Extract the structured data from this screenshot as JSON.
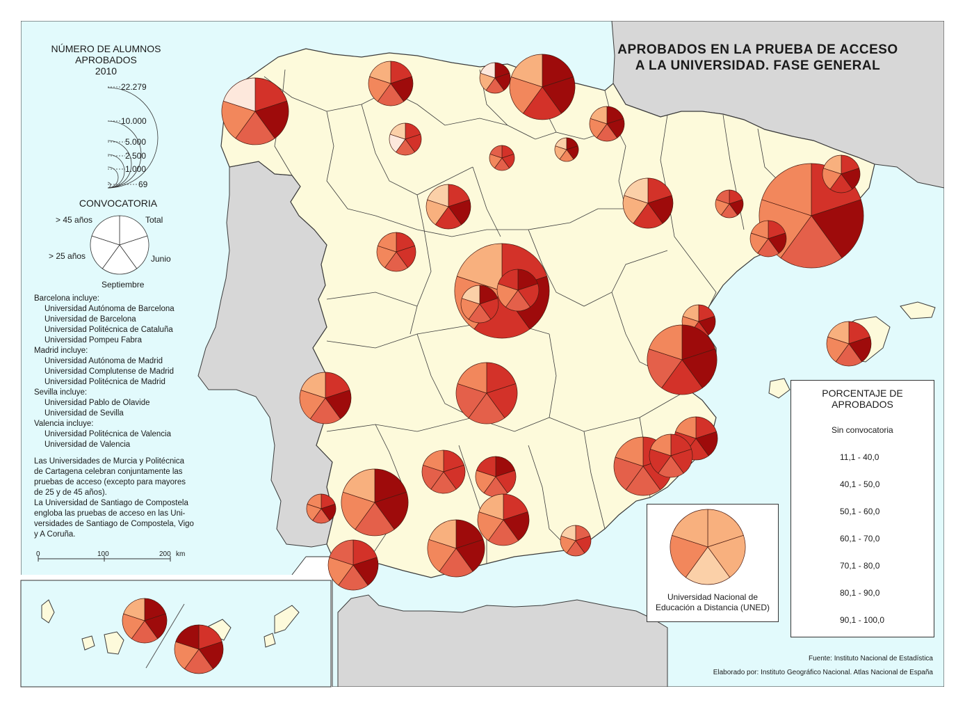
{
  "title": "APROBADOS EN LA PRUEBA DE ACCESO A LA UNIVERSIDAD. FASE GENERAL",
  "title_lines": [
    "APROBADOS EN LA PRUEBA DE ACCESO",
    "A LA UNIVERSIDAD. FASE GENERAL"
  ],
  "size_legend": {
    "title_lines": [
      "NÚMERO DE ALUMNOS",
      "APROBADOS",
      "2010"
    ],
    "values": [
      "22.279",
      "10.000",
      "5.000",
      "2.500",
      "1.000",
      "69"
    ]
  },
  "convocatoria": {
    "title": "CONVOCATORIA",
    "labels": {
      "mayores45": "> 45 años",
      "total": "Total",
      "mayores25": "> 25 años",
      "junio": "Junio",
      "septiembre": "Septiembre"
    }
  },
  "notes": [
    {
      "text": "Barcelona incluye:",
      "indent": false
    },
    {
      "text": "Universidad Autónoma de Barcelona",
      "indent": true
    },
    {
      "text": "Universidad de Barcelona",
      "indent": true
    },
    {
      "text": "Universidad Politécnica de Cataluña",
      "indent": true
    },
    {
      "text": "Universidad Pompeu Fabra",
      "indent": true
    },
    {
      "text": "Madrid incluye:",
      "indent": false
    },
    {
      "text": "Universidad Autónoma de Madrid",
      "indent": true
    },
    {
      "text": "Universidad Complutense de Madrid",
      "indent": true
    },
    {
      "text": "Universidad Politécnica de Madrid",
      "indent": true
    },
    {
      "text": "Sevilla incluye:",
      "indent": false
    },
    {
      "text": "Universidad Pablo de Olavide",
      "indent": true
    },
    {
      "text": "Universidad de Sevilla",
      "indent": true
    },
    {
      "text": "Valencia incluye:",
      "indent": false
    },
    {
      "text": "Universidad Politécnica de Valencia",
      "indent": true
    },
    {
      "text": "Universidad de Valencia",
      "indent": true
    },
    {
      "gap": true
    },
    {
      "text": "Las Universidades de Murcia y Politécnica",
      "indent": false
    },
    {
      "text": "de Cartagena celebran conjuntamente las",
      "indent": false
    },
    {
      "text": "pruebas de acceso (excepto para mayores",
      "indent": false
    },
    {
      "text": "de 25 y de 45 años).",
      "indent": false
    },
    {
      "text": "La Universidad de Santiago de Compostela",
      "indent": false
    },
    {
      "text": "engloba las pruebas de acceso en las Uni-",
      "indent": false
    },
    {
      "text": "versidades de Santiago de Compostela, Vigo",
      "indent": false
    },
    {
      "text": "y A Coruña.",
      "indent": false
    }
  ],
  "scale_bar": {
    "labels": [
      "0",
      "100",
      "200"
    ],
    "unit": "km"
  },
  "percent_legend": {
    "title_lines": [
      "PORCENTAJE DE",
      "APROBADOS"
    ],
    "classes": [
      {
        "label": "Sin convocatoria",
        "color": "#ffffff"
      },
      {
        "label": "11,1 - 40,0",
        "color": "#fde8dc"
      },
      {
        "label": "40,1 - 50,0",
        "color": "#fbd0a8"
      },
      {
        "label": "50,1 - 60,0",
        "color": "#f8b07e"
      },
      {
        "label": "60,1 - 70,0",
        "color": "#f2875c"
      },
      {
        "label": "70,1 - 80,0",
        "color": "#e4604a"
      },
      {
        "label": "80,1 - 90,0",
        "color": "#d33229"
      },
      {
        "label": "90,1 - 100,0",
        "color": "#9e0b0b"
      }
    ]
  },
  "uned": {
    "label_lines": [
      "Universidad Nacional de",
      "Educación a Distancia (UNED)"
    ]
  },
  "source": "Fuente: Instituto Nacional de Estadística",
  "credits": "Elaborado por: Instituto Geográfico Nacional. Atlas Nacional de España",
  "colors": {
    "sea": "#e2fafc",
    "spain": "#fdfadb",
    "foreign_land": "#d7d7d7",
    "border": "#3a3a3a"
  }
}
